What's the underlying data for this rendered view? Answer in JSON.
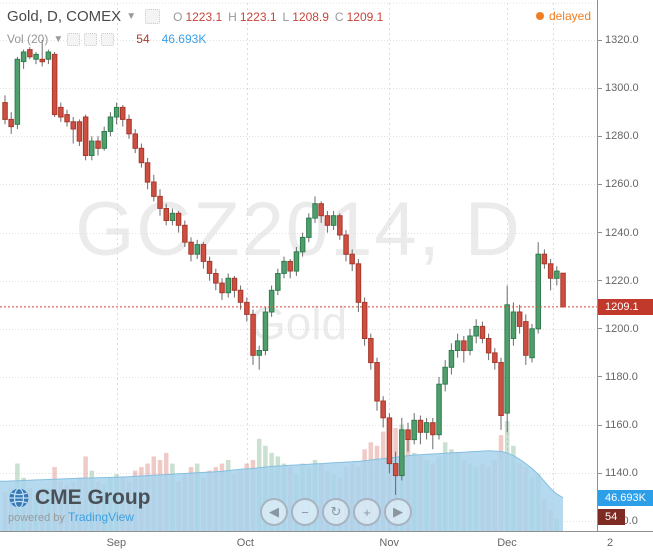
{
  "header": {
    "title": "Gold, D, COMEX",
    "ohlc": {
      "o_label": "O",
      "o": "1223.1",
      "h_label": "H",
      "h": "1223.1",
      "l_label": "L",
      "l": "1208.9",
      "c_label": "C",
      "c": "1209.1"
    },
    "volume_row": {
      "label": "Vol (20)",
      "value": "54",
      "ma_value": "46.693K"
    },
    "delayed_label": "delayed"
  },
  "watermark": {
    "line1": "GCZ2014, D",
    "line2": "Gold"
  },
  "badges": {
    "last_price": "1209.1",
    "vol_ma": "46.693K",
    "volume": "54"
  },
  "logo": {
    "cme": "CME Group",
    "powered": "powered by ",
    "tradingview": "TradingView"
  },
  "nav": {
    "buttons": [
      {
        "name": "pan-left-button",
        "glyph": "◀"
      },
      {
        "name": "zoom-out-button",
        "glyph": "−"
      },
      {
        "name": "reset-zoom-button",
        "glyph": "↻"
      },
      {
        "name": "zoom-in-button",
        "glyph": "+"
      },
      {
        "name": "pan-right-button",
        "glyph": "▶"
      }
    ]
  },
  "colors": {
    "up_fill": "#4f9e6b",
    "up_border": "#2f7d4f",
    "down_fill": "#cc4f42",
    "down_border": "#a8382c",
    "wick": "#6b6b6b",
    "grid": "#e1e1e1",
    "vgrid": "#dcdcdc",
    "last_price_line": "#d84b31",
    "price_badge_bg": "#c0392b",
    "vol_ma_badge_bg": "#2d9fe8",
    "vol_badge_bg": "#7e2b24",
    "vol_up": "rgba(103,166,124,0.35)",
    "vol_down": "rgba(214,123,112,0.40)",
    "vol_ma_fill": "rgba(168,210,236,0.85)",
    "vol_ma_line": "#85bfe0"
  },
  "chart_data": {
    "type": "candlestick",
    "title": "Gold, D, COMEX",
    "interval": "D",
    "last_price": 1209.1,
    "last_volume": 0.054,
    "vol_ma_last": 46.693,
    "ylim": [
      1120,
      1336
    ],
    "price_ticks": [
      "1320.0",
      "1300.0",
      "1280.0",
      "1260.0",
      "1240.0",
      "1220.0",
      "1200.0",
      "1180.0",
      "1160.0",
      "1140.0",
      "1120.0"
    ],
    "time_ticks": [
      {
        "label": "Sep",
        "index": 18
      },
      {
        "label": "Oct",
        "index": 39
      },
      {
        "label": "Nov",
        "index": 62
      },
      {
        "label": "Dec",
        "index": 81
      },
      {
        "label": "2",
        "x": 617
      }
    ],
    "extra_vline_x": 553,
    "candles": [
      [
        1294,
        1297,
        1285,
        1287,
        55
      ],
      [
        1287,
        1290,
        1281,
        1284,
        60
      ],
      [
        1285,
        1313,
        1283,
        1312,
        95
      ],
      [
        1311,
        1316,
        1308,
        1315,
        75
      ],
      [
        1316,
        1317,
        1312,
        1313,
        60
      ],
      [
        1312,
        1315,
        1310,
        1314,
        50
      ],
      [
        1312,
        1320,
        1309,
        1311,
        55
      ],
      [
        1312,
        1316,
        1310,
        1315,
        60
      ],
      [
        1314,
        1315,
        1288,
        1289,
        90
      ],
      [
        1292,
        1294,
        1286,
        1288,
        70
      ],
      [
        1289,
        1291,
        1284,
        1286,
        65
      ],
      [
        1286,
        1288,
        1277,
        1283,
        70
      ],
      [
        1286,
        1287,
        1276,
        1278,
        75
      ],
      [
        1288,
        1289,
        1270,
        1272,
        105
      ],
      [
        1272,
        1280,
        1270,
        1278,
        85
      ],
      [
        1278,
        1280,
        1272,
        1275,
        70
      ],
      [
        1275,
        1284,
        1274,
        1282,
        65
      ],
      [
        1282,
        1290,
        1280,
        1288,
        75
      ],
      [
        1288,
        1294,
        1285,
        1292,
        80
      ],
      [
        1292,
        1293,
        1284,
        1287,
        75
      ],
      [
        1287,
        1289,
        1279,
        1281,
        70
      ],
      [
        1281,
        1283,
        1273,
        1275,
        85
      ],
      [
        1275,
        1277,
        1267,
        1269,
        90
      ],
      [
        1269,
        1271,
        1258,
        1261,
        95
      ],
      [
        1261,
        1264,
        1253,
        1255,
        105
      ],
      [
        1255,
        1258,
        1247,
        1250,
        100
      ],
      [
        1250,
        1252,
        1243,
        1245,
        110
      ],
      [
        1245,
        1250,
        1243,
        1248,
        95
      ],
      [
        1248,
        1249,
        1240,
        1243,
        70
      ],
      [
        1243,
        1245,
        1234,
        1236,
        80
      ],
      [
        1236,
        1238,
        1228,
        1231,
        90
      ],
      [
        1231,
        1237,
        1229,
        1235,
        95
      ],
      [
        1235,
        1236,
        1225,
        1228,
        75
      ],
      [
        1228,
        1230,
        1220,
        1223,
        85
      ],
      [
        1223,
        1225,
        1216,
        1219,
        90
      ],
      [
        1219,
        1221,
        1212,
        1215,
        95
      ],
      [
        1215,
        1223,
        1213,
        1221,
        100
      ],
      [
        1221,
        1222,
        1213,
        1216,
        80
      ],
      [
        1216,
        1218,
        1208,
        1211,
        85
      ],
      [
        1211,
        1213,
        1203,
        1206,
        95
      ],
      [
        1206,
        1208,
        1185,
        1189,
        100
      ],
      [
        1189,
        1193,
        1183,
        1191,
        130
      ],
      [
        1191,
        1209,
        1189,
        1207,
        120
      ],
      [
        1207,
        1218,
        1205,
        1216,
        110
      ],
      [
        1216,
        1225,
        1214,
        1223,
        105
      ],
      [
        1223,
        1230,
        1221,
        1228,
        95
      ],
      [
        1228,
        1229,
        1221,
        1224,
        90
      ],
      [
        1224,
        1234,
        1222,
        1232,
        80
      ],
      [
        1232,
        1240,
        1230,
        1238,
        95
      ],
      [
        1238,
        1248,
        1236,
        1246,
        90
      ],
      [
        1246,
        1255,
        1244,
        1252,
        100
      ],
      [
        1252,
        1253,
        1244,
        1247,
        95
      ],
      [
        1247,
        1249,
        1240,
        1243,
        85
      ],
      [
        1243,
        1249,
        1241,
        1247,
        80
      ],
      [
        1247,
        1248,
        1237,
        1239,
        75
      ],
      [
        1239,
        1241,
        1228,
        1231,
        90
      ],
      [
        1231,
        1233,
        1224,
        1227,
        95
      ],
      [
        1227,
        1229,
        1207,
        1211,
        90
      ],
      [
        1211,
        1213,
        1193,
        1196,
        115
      ],
      [
        1196,
        1198,
        1183,
        1186,
        125
      ],
      [
        1186,
        1188,
        1166,
        1170,
        120
      ],
      [
        1170,
        1172,
        1159,
        1163,
        140
      ],
      [
        1163,
        1165,
        1140,
        1144,
        130
      ],
      [
        1144,
        1149,
        1131,
        1139,
        145
      ],
      [
        1139,
        1163,
        1137,
        1158,
        150
      ],
      [
        1158,
        1161,
        1149,
        1154,
        135
      ],
      [
        1154,
        1165,
        1152,
        1162,
        110
      ],
      [
        1162,
        1164,
        1152,
        1157,
        105
      ],
      [
        1157,
        1163,
        1154,
        1161,
        100
      ],
      [
        1161,
        1163,
        1150,
        1156,
        95
      ],
      [
        1156,
        1180,
        1154,
        1177,
        105
      ],
      [
        1177,
        1187,
        1174,
        1184,
        125
      ],
      [
        1184,
        1194,
        1181,
        1191,
        115
      ],
      [
        1191,
        1198,
        1188,
        1195,
        110
      ],
      [
        1195,
        1197,
        1186,
        1191,
        100
      ],
      [
        1191,
        1200,
        1189,
        1197,
        95
      ],
      [
        1197,
        1204,
        1194,
        1201,
        90
      ],
      [
        1201,
        1203,
        1194,
        1196,
        95
      ],
      [
        1196,
        1198,
        1187,
        1190,
        90
      ],
      [
        1190,
        1192,
        1183,
        1186,
        100
      ],
      [
        1186,
        1188,
        1158,
        1164,
        135
      ],
      [
        1165,
        1218,
        1157,
        1210,
        155
      ],
      [
        1196,
        1211,
        1193,
        1207,
        120
      ],
      [
        1207,
        1210,
        1198,
        1201,
        95
      ],
      [
        1203,
        1206,
        1185,
        1189,
        90
      ],
      [
        1188,
        1202,
        1186,
        1200,
        75
      ],
      [
        1200,
        1236,
        1198,
        1231,
        80
      ],
      [
        1231,
        1233,
        1225,
        1227,
        45
      ],
      [
        1227,
        1229,
        1216,
        1221,
        30
      ],
      [
        1221,
        1226,
        1218,
        1224,
        18
      ],
      [
        1223.1,
        1223.1,
        1208.9,
        1209.1,
        0.054
      ]
    ],
    "vol_ma": [
      70,
      70.4,
      70.8,
      71.2,
      71.6,
      72,
      72.3,
      72.6,
      73,
      73.3,
      73.6,
      74,
      74.2,
      74.5,
      74.7,
      75,
      75.2,
      75.5,
      75.8,
      76.1,
      76.5,
      77,
      77.5,
      78,
      78.5,
      79,
      79.5,
      80,
      80.5,
      81,
      81.5,
      82,
      82.5,
      83,
      83.5,
      84,
      85,
      86,
      87,
      87.5,
      88,
      89,
      90,
      91,
      91.5,
      92,
      92.5,
      93,
      93.5,
      94,
      94.5,
      95,
      95.5,
      96,
      96.5,
      97,
      97.5,
      98,
      99,
      100,
      101,
      102,
      103,
      104,
      105,
      106,
      107,
      107.5,
      108,
      108.5,
      109,
      109.5,
      110,
      110.5,
      111,
      111.5,
      112,
      112.5,
      113,
      112.5,
      112,
      110,
      106,
      101,
      95,
      88,
      80,
      70,
      60,
      52,
      46.693
    ]
  }
}
